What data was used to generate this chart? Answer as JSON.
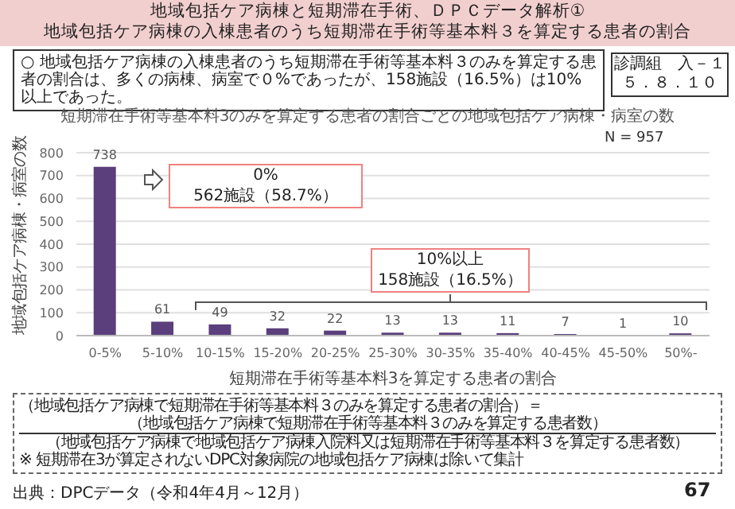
{
  "chart_data": {
    "type": "bar",
    "title": "地域包括ケア病棟と短期滞在手術、ＤＰＣデータ解析①",
    "subtitle": "地域包括ケア病棟の入棟患者のうち短期滞在手術等基本料３を算定する患者の割合",
    "xlabel": "短期滞在手術等基本料3を算定する患者の割合",
    "ylabel": "地域包括ケア病棟・病室の数",
    "categories": [
      "0-5%",
      "5-10%",
      "10-15%",
      "15-20%",
      "20-25%",
      "25-30%",
      "30-35%",
      "35-40%",
      "40-45%",
      "45-50%",
      "50%-"
    ],
    "values": [
      738,
      61,
      49,
      32,
      22,
      13,
      13,
      11,
      7,
      1,
      10
    ],
    "color": "#5b3f7c",
    "ylim": [
      0,
      800
    ],
    "yticks": [
      0,
      100,
      200,
      300,
      400,
      500,
      600,
      700,
      800
    ],
    "grid": "y",
    "data_labels": true,
    "annotations": [
      "○ 地域包括ケア病棟の入棟患者のうち短期滞在手術等基本料３のみを算定する患者の割合は、多くの病棟、病室で０%であったが、158施設（16.5%）は10%以上であった。",
      "診調組　入－１",
      "５．８．１０",
      "短期滞在手術等基本料3のみを算定する患者の割合ごとの地域包括ケア病棟・病室の数",
      "N = 957",
      "0%",
      "562施設（58.7%）",
      "10%以上",
      "158施設（16.5%）",
      "（地域包括ケア病棟で短期滞在手術等基本料３のみを算定する患者の割合）＝",
      "（地域包括ケア病棟で短期滞在手術等基本料３のみを算定する患者数）",
      "（地域包括ケア病棟で地域包括ケア病棟入院料又は短期滞在手術等基本料３を算定する患者数）",
      "※ 短期滞在3が算定されないDPC対象病院の地域包括ケア病棟は除いて集計",
      "出典：DPCデータ（令和4年4月～12月）",
      "67"
    ]
  }
}
